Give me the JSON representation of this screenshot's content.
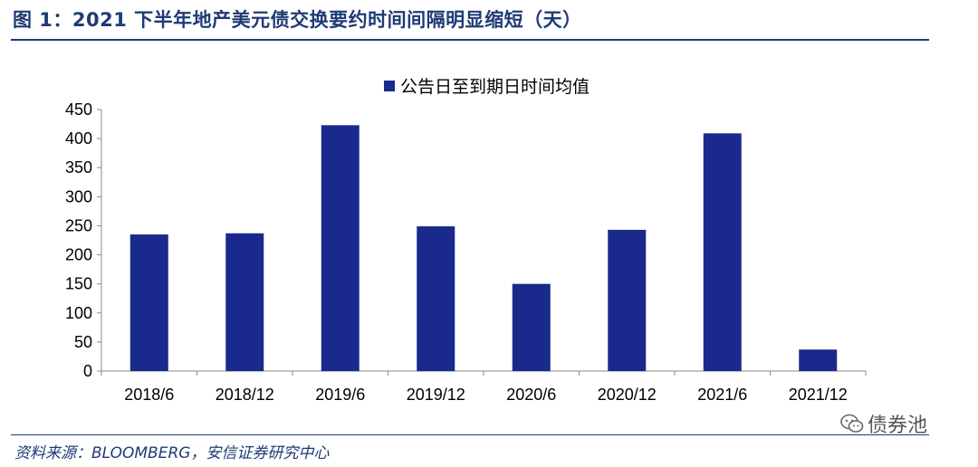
{
  "header": {
    "title": "图 1：2021 下半年地产美元债交换要约时间间隔明显缩短（天）"
  },
  "footer": {
    "source": "资料来源：BLOOMBERG，安信证券研究中心"
  },
  "watermark": {
    "text": "债券池",
    "icon": "wechat-icon"
  },
  "colors": {
    "bar": "#1a2a8c",
    "title": "#1f3b75",
    "axis": "#888888"
  },
  "chart_data": {
    "type": "bar",
    "categories": [
      "2018/6",
      "2018/12",
      "2019/6",
      "2019/12",
      "2020/6",
      "2020/12",
      "2021/6",
      "2021/12"
    ],
    "series": [
      {
        "name": "公告日至到期日时间均值",
        "values": [
          235,
          237,
          423,
          249,
          150,
          243,
          409,
          37
        ]
      }
    ],
    "yticks": [
      0,
      50,
      100,
      150,
      200,
      250,
      300,
      350,
      400,
      450
    ],
    "ylim": [
      0,
      450
    ],
    "grid": false,
    "legend": "top-center"
  }
}
